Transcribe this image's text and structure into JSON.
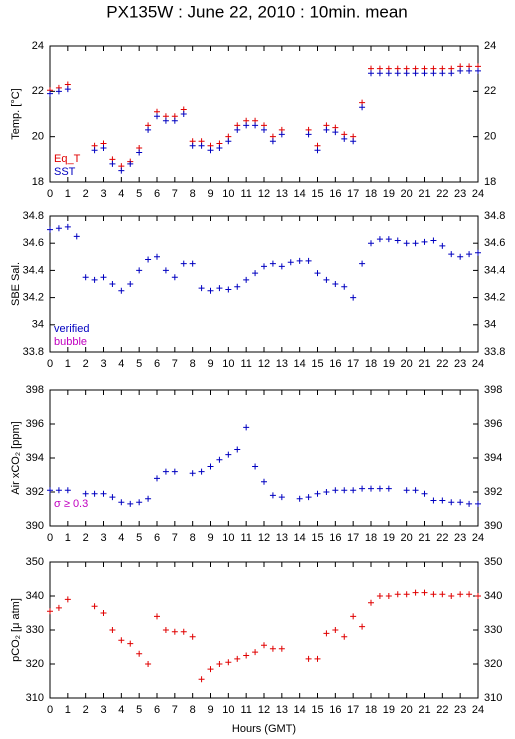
{
  "title": "PX135W : June 22, 2010 : 10min. mean",
  "xlabel": "Hours (GMT)",
  "chart_data": [
    {
      "type": "scatter",
      "ylabel": "Temp. [°C]",
      "x": [
        0,
        0.5,
        1,
        1.5,
        2,
        2.5,
        3,
        3.5,
        4,
        4.5,
        5,
        5.5,
        6,
        6.5,
        7,
        7.5,
        8,
        8.5,
        9,
        9.5,
        10,
        10.5,
        11,
        11.5,
        12,
        12.5,
        13,
        13.5,
        14,
        14.5,
        15,
        15.5,
        16,
        16.5,
        17,
        17.5,
        18,
        18.5,
        19,
        19.5,
        20,
        20.5,
        21,
        21.5,
        22,
        22.5,
        23,
        23.5,
        24
      ],
      "xlim": [
        0,
        24
      ],
      "xticks": [
        0,
        1,
        2,
        3,
        4,
        5,
        6,
        7,
        8,
        9,
        10,
        11,
        12,
        13,
        14,
        15,
        16,
        17,
        18,
        19,
        20,
        21,
        22,
        23,
        24
      ],
      "ylim": [
        18,
        24
      ],
      "yticks": [
        18,
        20,
        22,
        24
      ],
      "series": [
        {
          "name": "Eq_T",
          "color": "#e00000",
          "values": [
            22.05,
            22.15,
            22.3,
            null,
            null,
            19.6,
            19.7,
            19.0,
            18.7,
            18.9,
            19.5,
            20.5,
            21.1,
            20.9,
            20.9,
            21.2,
            19.8,
            19.8,
            19.6,
            19.7,
            20.0,
            20.5,
            20.7,
            20.7,
            20.5,
            20.0,
            20.3,
            null,
            null,
            20.3,
            19.6,
            20.5,
            20.4,
            20.1,
            20.0,
            21.5,
            23.0,
            23.0,
            23.0,
            23.0,
            23.0,
            23.0,
            23.0,
            23.0,
            23.0,
            23.0,
            23.1,
            23.1,
            23.1
          ]
        },
        {
          "name": "SST",
          "color": "#0000c0",
          "values": [
            21.9,
            22.0,
            22.1,
            null,
            null,
            19.4,
            19.5,
            18.8,
            18.5,
            18.8,
            19.3,
            20.3,
            20.9,
            20.7,
            20.7,
            21.0,
            19.6,
            19.6,
            19.4,
            19.5,
            19.8,
            20.3,
            20.5,
            20.5,
            20.3,
            19.8,
            20.1,
            null,
            null,
            20.1,
            19.4,
            20.3,
            20.2,
            19.9,
            19.8,
            21.3,
            22.8,
            22.8,
            22.8,
            22.8,
            22.8,
            22.8,
            22.8,
            22.8,
            22.8,
            22.8,
            22.9,
            22.9,
            22.9
          ]
        }
      ]
    },
    {
      "type": "scatter",
      "ylabel": "SBE Sal.",
      "x": [
        0,
        0.5,
        1,
        1.5,
        2,
        2.5,
        3,
        3.5,
        4,
        4.5,
        5,
        5.5,
        6,
        6.5,
        7,
        7.5,
        8,
        8.5,
        9,
        9.5,
        10,
        10.5,
        11,
        11.5,
        12,
        12.5,
        13,
        13.5,
        14,
        14.5,
        15,
        15.5,
        16,
        16.5,
        17,
        17.5,
        18,
        18.5,
        19,
        19.5,
        20,
        20.5,
        21,
        21.5,
        22,
        22.5,
        23,
        23.5,
        24
      ],
      "xlim": [
        0,
        24
      ],
      "xticks": [
        0,
        1,
        2,
        3,
        4,
        5,
        6,
        7,
        8,
        9,
        10,
        11,
        12,
        13,
        14,
        15,
        16,
        17,
        18,
        19,
        20,
        21,
        22,
        23,
        24
      ],
      "ylim": [
        33.8,
        34.8
      ],
      "yticks": [
        33.8,
        34,
        34.2,
        34.4,
        34.6,
        34.8
      ],
      "series": [
        {
          "name": "verified",
          "color": "#0000c0",
          "values": [
            34.7,
            34.71,
            34.72,
            34.65,
            34.35,
            34.33,
            34.35,
            34.3,
            34.25,
            34.3,
            34.4,
            34.48,
            34.5,
            34.4,
            34.35,
            34.45,
            34.45,
            34.27,
            34.25,
            34.27,
            34.26,
            34.28,
            34.33,
            34.38,
            34.43,
            34.45,
            34.43,
            34.46,
            34.47,
            34.47,
            34.38,
            34.33,
            34.3,
            34.28,
            34.2,
            34.45,
            34.6,
            34.63,
            34.63,
            34.62,
            34.6,
            34.6,
            34.61,
            34.62,
            34.58,
            34.52,
            34.5,
            34.52,
            34.53
          ]
        },
        {
          "name": "bubble",
          "color": "#c000c0",
          "values": [
            null,
            null,
            null,
            null,
            null,
            null,
            null,
            null,
            null,
            null,
            null,
            null,
            null,
            null,
            null,
            null,
            null,
            null,
            null,
            null,
            null,
            null,
            null,
            null,
            null,
            null,
            null,
            null,
            null,
            null,
            null,
            null,
            null,
            null,
            null,
            null,
            null,
            null,
            null,
            null,
            null,
            null,
            null,
            null,
            null,
            null,
            null,
            null,
            null
          ]
        }
      ]
    },
    {
      "type": "scatter",
      "ylabel": "Air xCO₂ [ppm]",
      "annotation": {
        "text": "σ ≥ 0.3",
        "color": "#c000c0"
      },
      "x": [
        0,
        0.5,
        1,
        1.5,
        2,
        2.5,
        3,
        3.5,
        4,
        4.5,
        5,
        5.5,
        6,
        6.5,
        7,
        7.5,
        8,
        8.5,
        9,
        9.5,
        10,
        10.5,
        11,
        11.5,
        12,
        12.5,
        13,
        13.5,
        14,
        14.5,
        15,
        15.5,
        16,
        16.5,
        17,
        17.5,
        18,
        18.5,
        19,
        19.5,
        20,
        20.5,
        21,
        21.5,
        22,
        22.5,
        23,
        23.5,
        24
      ],
      "xlim": [
        0,
        24
      ],
      "xticks": [
        0,
        1,
        2,
        3,
        4,
        5,
        6,
        7,
        8,
        9,
        10,
        11,
        12,
        13,
        14,
        15,
        16,
        17,
        18,
        19,
        20,
        21,
        22,
        23,
        24
      ],
      "ylim": [
        390,
        398
      ],
      "yticks": [
        390,
        392,
        394,
        396,
        398
      ],
      "series": [
        {
          "name": "xCO2",
          "color": "#0000c0",
          "values": [
            392.1,
            392.1,
            392.1,
            null,
            391.9,
            391.9,
            391.9,
            391.7,
            391.4,
            391.3,
            391.4,
            391.6,
            392.8,
            393.2,
            393.2,
            null,
            393.1,
            393.2,
            393.5,
            393.9,
            394.2,
            394.5,
            395.8,
            393.5,
            392.6,
            391.8,
            391.7,
            null,
            391.6,
            391.7,
            391.9,
            392.0,
            392.1,
            392.1,
            392.1,
            392.2,
            392.2,
            392.2,
            392.2,
            null,
            392.1,
            392.1,
            391.9,
            391.5,
            391.5,
            391.4,
            391.4,
            391.3,
            391.3
          ]
        }
      ]
    },
    {
      "type": "scatter",
      "ylabel": "pCO₂ [μ atm]",
      "x": [
        0,
        0.5,
        1,
        1.5,
        2,
        2.5,
        3,
        3.5,
        4,
        4.5,
        5,
        5.5,
        6,
        6.5,
        7,
        7.5,
        8,
        8.5,
        9,
        9.5,
        10,
        10.5,
        11,
        11.5,
        12,
        12.5,
        13,
        13.5,
        14,
        14.5,
        15,
        15.5,
        16,
        16.5,
        17,
        17.5,
        18,
        18.5,
        19,
        19.5,
        20,
        20.5,
        21,
        21.5,
        22,
        22.5,
        23,
        23.5,
        24
      ],
      "xlim": [
        0,
        24
      ],
      "xticks": [
        0,
        1,
        2,
        3,
        4,
        5,
        6,
        7,
        8,
        9,
        10,
        11,
        12,
        13,
        14,
        15,
        16,
        17,
        18,
        19,
        20,
        21,
        22,
        23,
        24
      ],
      "ylim": [
        310,
        350
      ],
      "yticks": [
        310,
        320,
        330,
        340,
        350
      ],
      "series": [
        {
          "name": "pCO2",
          "color": "#e00000",
          "values": [
            335.5,
            336.5,
            339,
            null,
            null,
            337,
            335,
            330,
            327,
            326,
            323,
            320,
            334,
            330,
            329.5,
            329.5,
            328,
            315.5,
            318.5,
            320,
            320.5,
            321.5,
            322.5,
            323.5,
            325.5,
            324.5,
            324.5,
            null,
            null,
            321.5,
            321.5,
            329,
            330,
            328,
            334,
            331,
            338,
            340,
            340,
            340.5,
            340.5,
            341,
            341,
            340.5,
            340.5,
            340,
            340.5,
            340.5,
            340
          ]
        }
      ]
    }
  ]
}
